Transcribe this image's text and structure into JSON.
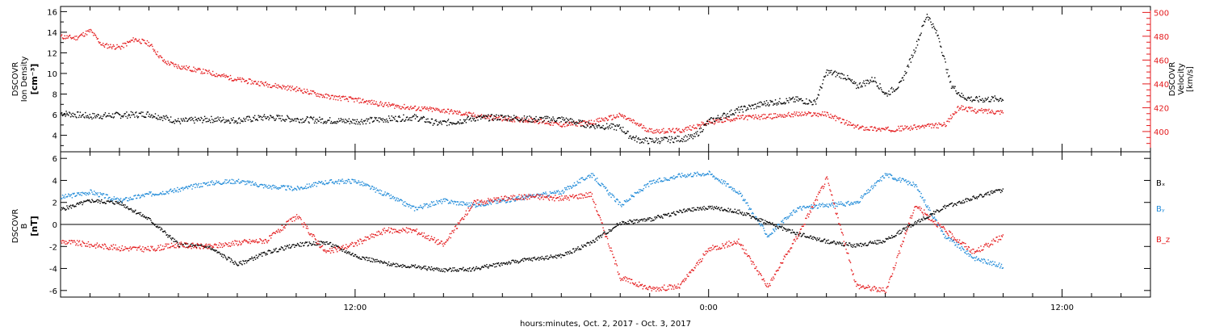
{
  "xaxis": {
    "label": "hours:minutes, Oct.  2, 2017 - Oct.  3, 2017",
    "ticks": [
      {
        "hour": 12,
        "label": "12:00"
      },
      {
        "hour": 24,
        "label": "0:00"
      },
      {
        "hour": 36,
        "label": "12:00"
      }
    ],
    "range_hours": [
      2.0,
      39.0
    ]
  },
  "chart_data": [
    {
      "type": "scatter",
      "panel": "plasma",
      "ylabel_left": [
        "DSCOVR",
        "Ion Density",
        "[cm⁻³]"
      ],
      "ylabel_right": [
        "DSCOVR",
        "Velocity",
        "[km/s]"
      ],
      "ylim_left": [
        2.4,
        16.5
      ],
      "ylim_right": [
        383,
        505
      ],
      "yticks_left": [
        4,
        6,
        8,
        10,
        12,
        14,
        16
      ],
      "yticks_right": [
        400,
        420,
        440,
        460,
        480,
        500
      ],
      "grid": false,
      "series": [
        {
          "color": "#000000",
          "axis": "left",
          "x": [
            2.0,
            3,
            4,
            5,
            6,
            7,
            8,
            9,
            10,
            11,
            12,
            13,
            14,
            14.8,
            15.5,
            16,
            17,
            18,
            19,
            20,
            21,
            21.3,
            21.6,
            22,
            22.5,
            23,
            23.5,
            24,
            25,
            26,
            27,
            27.6,
            28,
            28.6,
            29,
            29.6,
            30,
            30.5,
            31,
            31.4,
            31.8,
            32.2,
            32.6,
            33,
            34
          ],
          "y": [
            6.2,
            5.9,
            6.0,
            6.1,
            5.4,
            5.6,
            5.5,
            5.8,
            5.6,
            5.5,
            5.4,
            5.6,
            5.8,
            5.2,
            5.4,
            5.7,
            5.8,
            5.6,
            5.6,
            5.0,
            4.8,
            4.0,
            3.6,
            3.5,
            3.6,
            3.7,
            3.9,
            5.4,
            6.5,
            7.2,
            7.5,
            7.2,
            10.2,
            9.8,
            8.8,
            9.5,
            8.0,
            9.0,
            12.5,
            15.8,
            13.5,
            9.0,
            7.8,
            7.5,
            7.6
          ]
        },
        {
          "color": "#e41a1c",
          "axis": "right",
          "x": [
            2.0,
            2.5,
            3,
            3.4,
            4,
            4.5,
            5,
            5.5,
            6,
            7,
            8,
            9,
            10,
            11,
            12,
            13,
            14,
            15,
            16,
            17,
            18,
            19,
            20,
            21,
            22,
            23,
            24,
            25,
            26,
            27,
            28,
            29,
            30,
            31,
            32,
            32.5,
            33,
            34
          ],
          "y": [
            480,
            479,
            485,
            473,
            471,
            478,
            474,
            459,
            455,
            450,
            444,
            440,
            436,
            430,
            427,
            423,
            420,
            418,
            414,
            411,
            410,
            406,
            408,
            414,
            401,
            401,
            408,
            412,
            413,
            415,
            415,
            404,
            402,
            404,
            406,
            421,
            418,
            417
          ]
        }
      ]
    },
    {
      "type": "scatter",
      "panel": "field",
      "ylabel_left": [
        "DSCOVR",
        "B",
        "[nT]"
      ],
      "ylim": [
        -6.6,
        6.6
      ],
      "yticks": [
        -6,
        -4,
        -2,
        0,
        2,
        4,
        6
      ],
      "zero_line": true,
      "grid": false,
      "legend_position": "right",
      "series": [
        {
          "name": "Bₓ",
          "color": "#000000",
          "x": [
            2.0,
            3,
            4,
            5,
            6,
            7,
            8,
            9,
            10,
            11,
            12,
            13,
            14,
            15,
            16,
            17,
            18,
            19,
            20,
            21,
            22,
            23,
            24,
            25,
            26,
            27,
            28,
            29,
            30,
            31,
            32,
            33,
            34
          ],
          "y": [
            1.4,
            2.2,
            2.0,
            0.5,
            -1.8,
            -2.0,
            -3.6,
            -2.5,
            -1.8,
            -1.6,
            -2.8,
            -3.5,
            -3.8,
            -4.1,
            -4.0,
            -3.5,
            -3.1,
            -2.8,
            -1.6,
            0.2,
            0.5,
            1.2,
            1.6,
            1.2,
            0.2,
            -0.8,
            -1.5,
            -1.9,
            -1.4,
            0.2,
            1.6,
            2.5,
            3.2
          ]
        },
        {
          "name": "Bᵧ",
          "color": "#1f8ad8",
          "x": [
            2.0,
            3,
            4,
            5,
            6,
            7,
            8,
            9,
            10,
            11,
            12,
            13,
            14,
            15,
            16,
            17,
            18,
            19,
            20,
            21,
            22,
            23,
            24,
            25,
            26,
            27,
            28,
            29,
            30,
            31,
            32,
            33,
            34
          ],
          "y": [
            2.5,
            3.0,
            2.2,
            2.8,
            3.2,
            3.8,
            4.0,
            3.5,
            3.3,
            3.9,
            4.0,
            2.8,
            1.5,
            2.2,
            1.8,
            2.2,
            2.6,
            3.0,
            4.6,
            1.8,
            3.8,
            4.5,
            4.7,
            3.0,
            -1.0,
            1.5,
            1.8,
            2.0,
            4.6,
            3.6,
            -1.0,
            -3.0,
            -3.8
          ]
        },
        {
          "name": "B_z",
          "color": "#e41a1c",
          "x": [
            2.0,
            3,
            4,
            5,
            6,
            7,
            8,
            9,
            10,
            11,
            12,
            13,
            14,
            15,
            16,
            17,
            18,
            19,
            20,
            21,
            22,
            23,
            24,
            25,
            26,
            27,
            28,
            29,
            30,
            31,
            32,
            33,
            34
          ],
          "y": [
            -1.5,
            -1.8,
            -2.1,
            -2.2,
            -1.8,
            -2.0,
            -1.6,
            -1.4,
            0.8,
            -2.5,
            -1.7,
            -0.5,
            -0.5,
            -1.8,
            2.0,
            2.4,
            2.6,
            2.4,
            2.8,
            -4.8,
            -5.8,
            -5.6,
            -2.2,
            -1.5,
            -5.6,
            -1.0,
            4.2,
            -5.5,
            -6.0,
            1.8,
            -0.5,
            -2.5,
            -1.0
          ]
        }
      ]
    }
  ]
}
